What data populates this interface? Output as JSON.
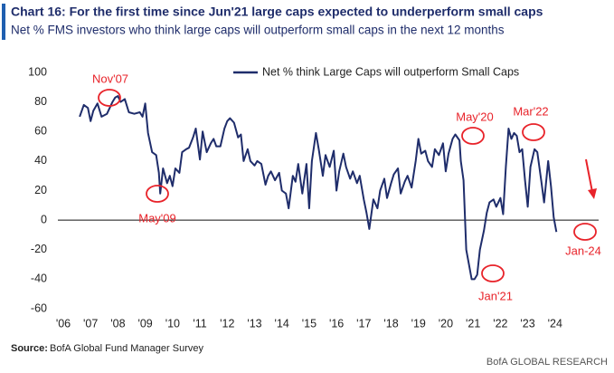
{
  "chart_data": {
    "type": "line",
    "title": "Chart 16: For the first time since Jun'21 large caps expected to underperform small caps",
    "subtitle": "Net % FMS investors who think large caps will outperform small caps in the next 12 months",
    "source_label": "Source:",
    "source": "BofA Global Fund Manager Survey",
    "brand": "BofA GLOBAL RESEARCH",
    "annotations": [
      "Nov'07",
      "May'09",
      "May'20",
      "Jan'21",
      "Mar'22",
      "Jan-24"
    ],
    "annotation_color": "#e8232a",
    "x": [
      2006.6,
      2006.75,
      2006.9,
      2007.0,
      2007.1,
      2007.25,
      2007.4,
      2007.6,
      2007.8,
      2007.9,
      2008.0,
      2008.1,
      2008.25,
      2008.4,
      2008.6,
      2008.8,
      2008.9,
      2009.0,
      2009.1,
      2009.25,
      2009.4,
      2009.5,
      2009.55,
      2009.65,
      2009.8,
      2009.9,
      2010.0,
      2010.1,
      2010.25,
      2010.35,
      2010.5,
      2010.6,
      2010.75,
      2010.85,
      2011.0,
      2011.1,
      2011.25,
      2011.4,
      2011.5,
      2011.6,
      2011.75,
      2011.9,
      2012.0,
      2012.1,
      2012.25,
      2012.4,
      2012.5,
      2012.6,
      2012.75,
      2012.85,
      2013.0,
      2013.1,
      2013.25,
      2013.4,
      2013.5,
      2013.6,
      2013.75,
      2013.9,
      2014.0,
      2014.15,
      2014.25,
      2014.4,
      2014.5,
      2014.6,
      2014.75,
      2014.9,
      2015.0,
      2015.1,
      2015.25,
      2015.35,
      2015.5,
      2015.6,
      2015.75,
      2015.9,
      2016.0,
      2016.1,
      2016.25,
      2016.35,
      2016.5,
      2016.6,
      2016.75,
      2016.85,
      2017.0,
      2017.1,
      2017.2,
      2017.35,
      2017.5,
      2017.6,
      2017.75,
      2017.85,
      2018.0,
      2018.1,
      2018.25,
      2018.35,
      2018.5,
      2018.6,
      2018.75,
      2018.9,
      2019.0,
      2019.1,
      2019.25,
      2019.35,
      2019.5,
      2019.6,
      2019.75,
      2019.9,
      2020.0,
      2020.1,
      2020.25,
      2020.35,
      2020.5,
      2020.55,
      2020.65,
      2020.75,
      2020.85,
      2020.95,
      2021.05,
      2021.15,
      2021.25,
      2021.4,
      2021.5,
      2021.6,
      2021.75,
      2021.85,
      2022.0,
      2022.1,
      2022.2,
      2022.3,
      2022.4,
      2022.5,
      2022.6,
      2022.7,
      2022.8,
      2022.9,
      2023.0,
      2023.1,
      2023.25,
      2023.35,
      2023.5,
      2023.6,
      2023.75,
      2023.85,
      2023.95,
      2024.05
    ],
    "series": [
      {
        "name": "Net % think Large Caps will outperform Small Caps",
        "color": "#1f2d6b",
        "values": [
          70,
          78,
          76,
          67,
          74,
          79,
          70,
          72,
          80,
          83,
          84,
          80,
          82,
          73,
          72,
          73,
          70,
          79,
          59,
          46,
          44,
          32,
          18,
          35,
          25,
          30,
          23,
          35,
          32,
          46,
          48,
          49,
          56,
          62,
          41,
          60,
          46,
          52,
          55,
          50,
          50,
          62,
          67,
          69,
          66,
          56,
          58,
          40,
          48,
          40,
          37,
          40,
          38,
          24,
          30,
          33,
          27,
          32,
          20,
          18,
          8,
          30,
          26,
          38,
          18,
          38,
          8,
          40,
          59,
          48,
          30,
          44,
          36,
          47,
          20,
          33,
          45,
          36,
          28,
          33,
          25,
          30,
          14,
          5,
          -6,
          14,
          8,
          20,
          28,
          15,
          25,
          31,
          35,
          18,
          26,
          30,
          22,
          40,
          55,
          45,
          47,
          40,
          36,
          48,
          44,
          52,
          33,
          45,
          55,
          58,
          54,
          40,
          27,
          -20,
          -30,
          -40,
          -40,
          -37,
          -20,
          -7,
          5,
          12,
          14,
          9,
          15,
          4,
          36,
          62,
          55,
          59,
          57,
          46,
          48,
          27,
          9,
          36,
          48,
          46,
          26,
          12,
          40,
          23,
          2,
          -8
        ]
      }
    ],
    "xlim": [
      2006,
      2025
    ],
    "xticks": [
      {
        "value": 2006,
        "label": "'06"
      },
      {
        "value": 2007,
        "label": "'07"
      },
      {
        "value": 2008,
        "label": "'08"
      },
      {
        "value": 2009,
        "label": "'09"
      },
      {
        "value": 2010,
        "label": "'10"
      },
      {
        "value": 2011,
        "label": "'11"
      },
      {
        "value": 2012,
        "label": "'12"
      },
      {
        "value": 2013,
        "label": "'13"
      },
      {
        "value": 2014,
        "label": "'14"
      },
      {
        "value": 2015,
        "label": "'15"
      },
      {
        "value": 2016,
        "label": "'16"
      },
      {
        "value": 2017,
        "label": "'17"
      },
      {
        "value": 2018,
        "label": "'18"
      },
      {
        "value": 2019,
        "label": "'19"
      },
      {
        "value": 2020,
        "label": "'20"
      },
      {
        "value": 2021,
        "label": "'21"
      },
      {
        "value": 2022,
        "label": "'22"
      },
      {
        "value": 2023,
        "label": "'23"
      },
      {
        "value": 2024,
        "label": "'24"
      }
    ],
    "ylim": [
      -60,
      100
    ],
    "yticks": [
      -60,
      -40,
      -20,
      0,
      20,
      40,
      60,
      80,
      100
    ],
    "grid": false
  }
}
